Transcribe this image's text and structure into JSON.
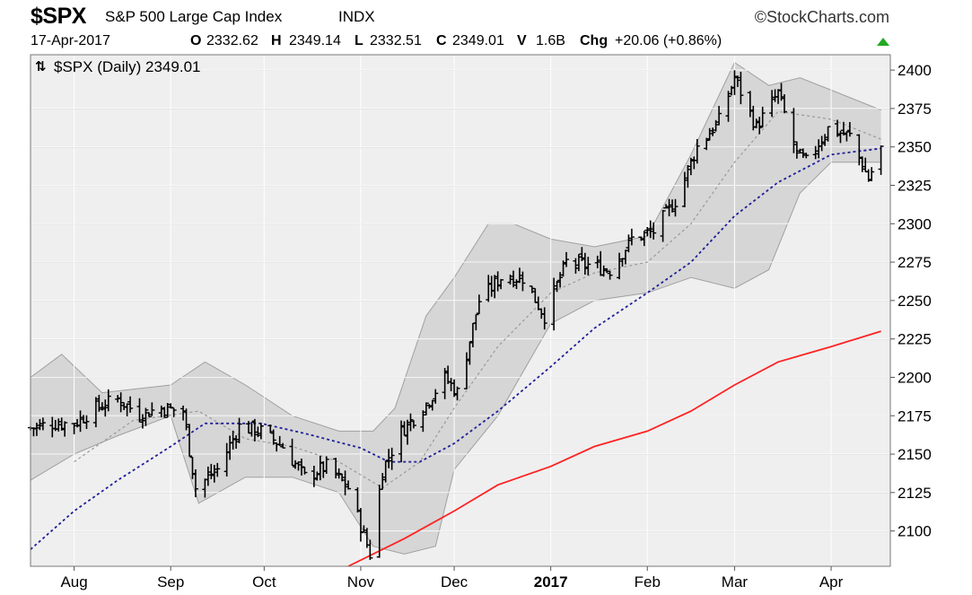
{
  "header": {
    "symbol": "$SPX",
    "name": "S&P 500 Large Cap Index",
    "exchange": "INDX",
    "brand": "©StockCharts.com",
    "date": "17-Apr-2017",
    "open_label": "O",
    "open": "2332.62",
    "high_label": "H",
    "high": "2349.14",
    "low_label": "L",
    "low": "2332.51",
    "close_label": "C",
    "close": "2349.01",
    "volume_label": "V",
    "volume": "1.6B",
    "change_label": "Chg",
    "change": "+20.06 (+0.86%)",
    "change_color": "#22aa22"
  },
  "chart_data": {
    "type": "ohlc",
    "legend_text": "$SPX (Daily) 2349.01",
    "y_ticks": [
      2100,
      2125,
      2150,
      2175,
      2200,
      2225,
      2250,
      2275,
      2300,
      2325,
      2350,
      2375,
      2400
    ],
    "ylim": [
      2077,
      2410
    ],
    "xlim": [
      "2016-07-18",
      "2017-04-20"
    ],
    "x_ticks": [
      {
        "label": "Aug",
        "date": "2016-08-01",
        "bold": false
      },
      {
        "label": "Sep",
        "date": "2016-09-01",
        "bold": false
      },
      {
        "label": "Oct",
        "date": "2016-10-01",
        "bold": false
      },
      {
        "label": "Nov",
        "date": "2016-11-01",
        "bold": false
      },
      {
        "label": "Dec",
        "date": "2016-12-01",
        "bold": false
      },
      {
        "label": "2017",
        "date": "2017-01-01",
        "bold": true
      },
      {
        "label": "Feb",
        "date": "2017-02-01",
        "bold": false
      },
      {
        "label": "Mar",
        "date": "2017-03-01",
        "bold": false
      },
      {
        "label": "Apr",
        "date": "2017-04-01",
        "bold": false
      }
    ],
    "grid": true,
    "colors": {
      "price_bars": "#000000",
      "sma50": "#1f1f99",
      "sma200": "#ff2222",
      "sma20": "#999999",
      "band_fill": "#d6d6d6",
      "band_edge": "#a0a0a0",
      "plot_bg": "#efefef"
    },
    "price_close": [
      [
        "2016-07-18",
        2167
      ],
      [
        "2016-07-25",
        2170
      ],
      [
        "2016-08-01",
        2170
      ],
      [
        "2016-08-08",
        2180
      ],
      [
        "2016-08-15",
        2186
      ],
      [
        "2016-08-22",
        2176
      ],
      [
        "2016-08-29",
        2180
      ],
      [
        "2016-09-05",
        2178
      ],
      [
        "2016-09-09",
        2128
      ],
      [
        "2016-09-16",
        2140
      ],
      [
        "2016-09-23",
        2168
      ],
      [
        "2016-09-30",
        2165
      ],
      [
        "2016-10-07",
        2155
      ],
      [
        "2016-10-14",
        2135
      ],
      [
        "2016-10-21",
        2142
      ],
      [
        "2016-10-28",
        2128
      ],
      [
        "2016-11-04",
        2085
      ],
      [
        "2016-11-08",
        2140
      ],
      [
        "2016-11-14",
        2165
      ],
      [
        "2016-11-21",
        2180
      ],
      [
        "2016-11-28",
        2200
      ],
      [
        "2016-12-02",
        2190
      ],
      [
        "2016-12-09",
        2250
      ],
      [
        "2016-12-16",
        2265
      ],
      [
        "2016-12-23",
        2265
      ],
      [
        "2016-12-30",
        2240
      ],
      [
        "2017-01-06",
        2275
      ],
      [
        "2017-01-13",
        2273
      ],
      [
        "2017-01-20",
        2270
      ],
      [
        "2017-01-27",
        2290
      ],
      [
        "2017-02-03",
        2295
      ],
      [
        "2017-02-10",
        2315
      ],
      [
        "2017-02-17",
        2350
      ],
      [
        "2017-02-24",
        2367
      ],
      [
        "2017-03-01",
        2395
      ],
      [
        "2017-03-08",
        2363
      ],
      [
        "2017-03-15",
        2385
      ],
      [
        "2017-03-21",
        2345
      ],
      [
        "2017-03-24",
        2340
      ],
      [
        "2017-03-31",
        2362
      ],
      [
        "2017-04-07",
        2357
      ],
      [
        "2017-04-13",
        2329
      ],
      [
        "2017-04-17",
        2349
      ]
    ],
    "sma50": [
      [
        "2016-07-18",
        2088
      ],
      [
        "2016-08-01",
        2113
      ],
      [
        "2016-08-15",
        2133
      ],
      [
        "2016-09-01",
        2155
      ],
      [
        "2016-09-12",
        2170
      ],
      [
        "2016-09-30",
        2170
      ],
      [
        "2016-10-15",
        2163
      ],
      [
        "2016-11-01",
        2154
      ],
      [
        "2016-11-10",
        2145
      ],
      [
        "2016-11-20",
        2145
      ],
      [
        "2016-12-01",
        2157
      ],
      [
        "2016-12-15",
        2178
      ],
      [
        "2017-01-01",
        2207
      ],
      [
        "2017-01-15",
        2232
      ],
      [
        "2017-02-01",
        2255
      ],
      [
        "2017-02-15",
        2275
      ],
      [
        "2017-03-01",
        2305
      ],
      [
        "2017-03-15",
        2327
      ],
      [
        "2017-04-01",
        2345
      ],
      [
        "2017-04-17",
        2349
      ]
    ],
    "sma200": [
      [
        "2016-10-28",
        2077
      ],
      [
        "2016-11-15",
        2095
      ],
      [
        "2016-12-01",
        2113
      ],
      [
        "2016-12-15",
        2130
      ],
      [
        "2017-01-01",
        2142
      ],
      [
        "2017-01-15",
        2155
      ],
      [
        "2017-02-01",
        2165
      ],
      [
        "2017-02-15",
        2178
      ],
      [
        "2017-03-01",
        2195
      ],
      [
        "2017-03-15",
        2210
      ],
      [
        "2017-04-01",
        2220
      ],
      [
        "2017-04-17",
        2230
      ]
    ],
    "sma20": [
      [
        "2016-08-01",
        2145
      ],
      [
        "2016-08-20",
        2172
      ],
      [
        "2016-09-10",
        2178
      ],
      [
        "2016-09-25",
        2160
      ],
      [
        "2016-10-10",
        2155
      ],
      [
        "2016-10-25",
        2145
      ],
      [
        "2016-11-08",
        2128
      ],
      [
        "2016-11-20",
        2145
      ],
      [
        "2016-12-01",
        2180
      ],
      [
        "2016-12-15",
        2220
      ],
      [
        "2017-01-01",
        2255
      ],
      [
        "2017-01-15",
        2268
      ],
      [
        "2017-02-01",
        2275
      ],
      [
        "2017-02-15",
        2300
      ],
      [
        "2017-03-01",
        2340
      ],
      [
        "2017-03-15",
        2373
      ],
      [
        "2017-04-01",
        2368
      ],
      [
        "2017-04-17",
        2355
      ]
    ],
    "bb_upper": [
      [
        "2016-07-18",
        2200
      ],
      [
        "2016-07-28",
        2215
      ],
      [
        "2016-08-10",
        2190
      ],
      [
        "2016-09-01",
        2195
      ],
      [
        "2016-09-12",
        2210
      ],
      [
        "2016-09-25",
        2195
      ],
      [
        "2016-10-10",
        2175
      ],
      [
        "2016-10-25",
        2165
      ],
      [
        "2016-11-05",
        2165
      ],
      [
        "2016-11-12",
        2180
      ],
      [
        "2016-11-22",
        2240
      ],
      [
        "2016-12-01",
        2265
      ],
      [
        "2016-12-12",
        2300
      ],
      [
        "2016-12-20",
        2300
      ],
      [
        "2017-01-01",
        2290
      ],
      [
        "2017-01-15",
        2285
      ],
      [
        "2017-02-01",
        2292
      ],
      [
        "2017-02-15",
        2345
      ],
      [
        "2017-03-01",
        2405
      ],
      [
        "2017-03-12",
        2390
      ],
      [
        "2017-03-22",
        2395
      ],
      [
        "2017-04-01",
        2387
      ],
      [
        "2017-04-17",
        2374
      ]
    ],
    "bb_lower": [
      [
        "2016-07-18",
        2133
      ],
      [
        "2016-08-01",
        2150
      ],
      [
        "2016-08-15",
        2162
      ],
      [
        "2016-09-01",
        2175
      ],
      [
        "2016-09-10",
        2118
      ],
      [
        "2016-09-25",
        2135
      ],
      [
        "2016-10-10",
        2135
      ],
      [
        "2016-10-25",
        2125
      ],
      [
        "2016-11-05",
        2090
      ],
      [
        "2016-11-15",
        2085
      ],
      [
        "2016-11-25",
        2090
      ],
      [
        "2016-12-01",
        2140
      ],
      [
        "2016-12-15",
        2175
      ],
      [
        "2017-01-01",
        2235
      ],
      [
        "2017-01-15",
        2250
      ],
      [
        "2017-02-01",
        2255
      ],
      [
        "2017-02-15",
        2265
      ],
      [
        "2017-03-01",
        2258
      ],
      [
        "2017-03-12",
        2270
      ],
      [
        "2017-03-22",
        2320
      ],
      [
        "2017-04-01",
        2340
      ],
      [
        "2017-04-17",
        2340
      ]
    ]
  }
}
